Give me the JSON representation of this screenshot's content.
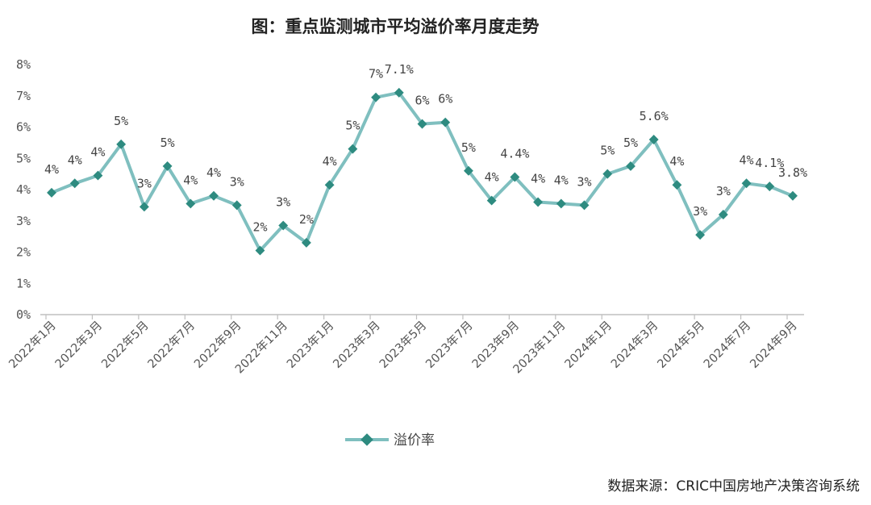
{
  "chart_data": {
    "type": "line",
    "title": "图：重点监测城市平均溢价率月度走势",
    "xlabel": "",
    "ylabel": "",
    "ylim": [
      0,
      8
    ],
    "yticks": [
      "0%",
      "1%",
      "2%",
      "3%",
      "4%",
      "5%",
      "6%",
      "7%",
      "8%"
    ],
    "x": [
      "2022年1月",
      "2022年2月",
      "2022年3月",
      "2022年4月",
      "2022年5月",
      "2022年6月",
      "2022年7月",
      "2022年8月",
      "2022年9月",
      "2022年10月",
      "2022年11月",
      "2022年12月",
      "2023年1月",
      "2023年2月",
      "2023年3月",
      "2023年4月",
      "2023年5月",
      "2023年6月",
      "2023年7月",
      "2023年8月",
      "2023年9月",
      "2023年10月",
      "2023年11月",
      "2023年12月",
      "2024年1月",
      "2024年2月",
      "2024年3月",
      "2024年4月",
      "2024年5月",
      "2024年6月",
      "2024年7月",
      "2024年8月",
      "2024年9月"
    ],
    "xtick_labels": [
      "2022年1月",
      "2022年3月",
      "2022年5月",
      "2022年7月",
      "2022年9月",
      "2022年11月",
      "2023年1月",
      "2023年3月",
      "2023年5月",
      "2023年7月",
      "2023年9月",
      "2023年11月",
      "2024年1月",
      "2024年3月",
      "2024年5月",
      "2024年7月",
      "2024年9月"
    ],
    "series": [
      {
        "name": "溢价率",
        "color": "#7fbfbf",
        "marker_color": "#2e8b80",
        "values": [
          3.9,
          4.2,
          4.45,
          5.45,
          3.45,
          4.75,
          3.55,
          3.8,
          3.5,
          2.05,
          2.85,
          2.3,
          4.15,
          5.3,
          6.95,
          7.1,
          6.1,
          6.15,
          4.6,
          3.65,
          4.4,
          3.6,
          3.55,
          3.5,
          4.5,
          4.75,
          5.6,
          4.15,
          2.55,
          3.2,
          4.2,
          4.1,
          3.8
        ],
        "labels": [
          "4%",
          "4%",
          "4%",
          "5%",
          "3%",
          "5%",
          "4%",
          "4%",
          "3%",
          "2%",
          "3%",
          "2%",
          "4%",
          "5%",
          "7%",
          "7.1%",
          "6%",
          "6%",
          "5%",
          "4%",
          "4.4%",
          "4%",
          "4%",
          "3%",
          "5%",
          "5%",
          "5.6%",
          "4%",
          "3%",
          "3%",
          "4%",
          "4.1%",
          "3.8%"
        ]
      }
    ],
    "legend": "bottom-center",
    "grid": false
  },
  "source": "数据来源：CRIC中国房地产决策咨询系统"
}
